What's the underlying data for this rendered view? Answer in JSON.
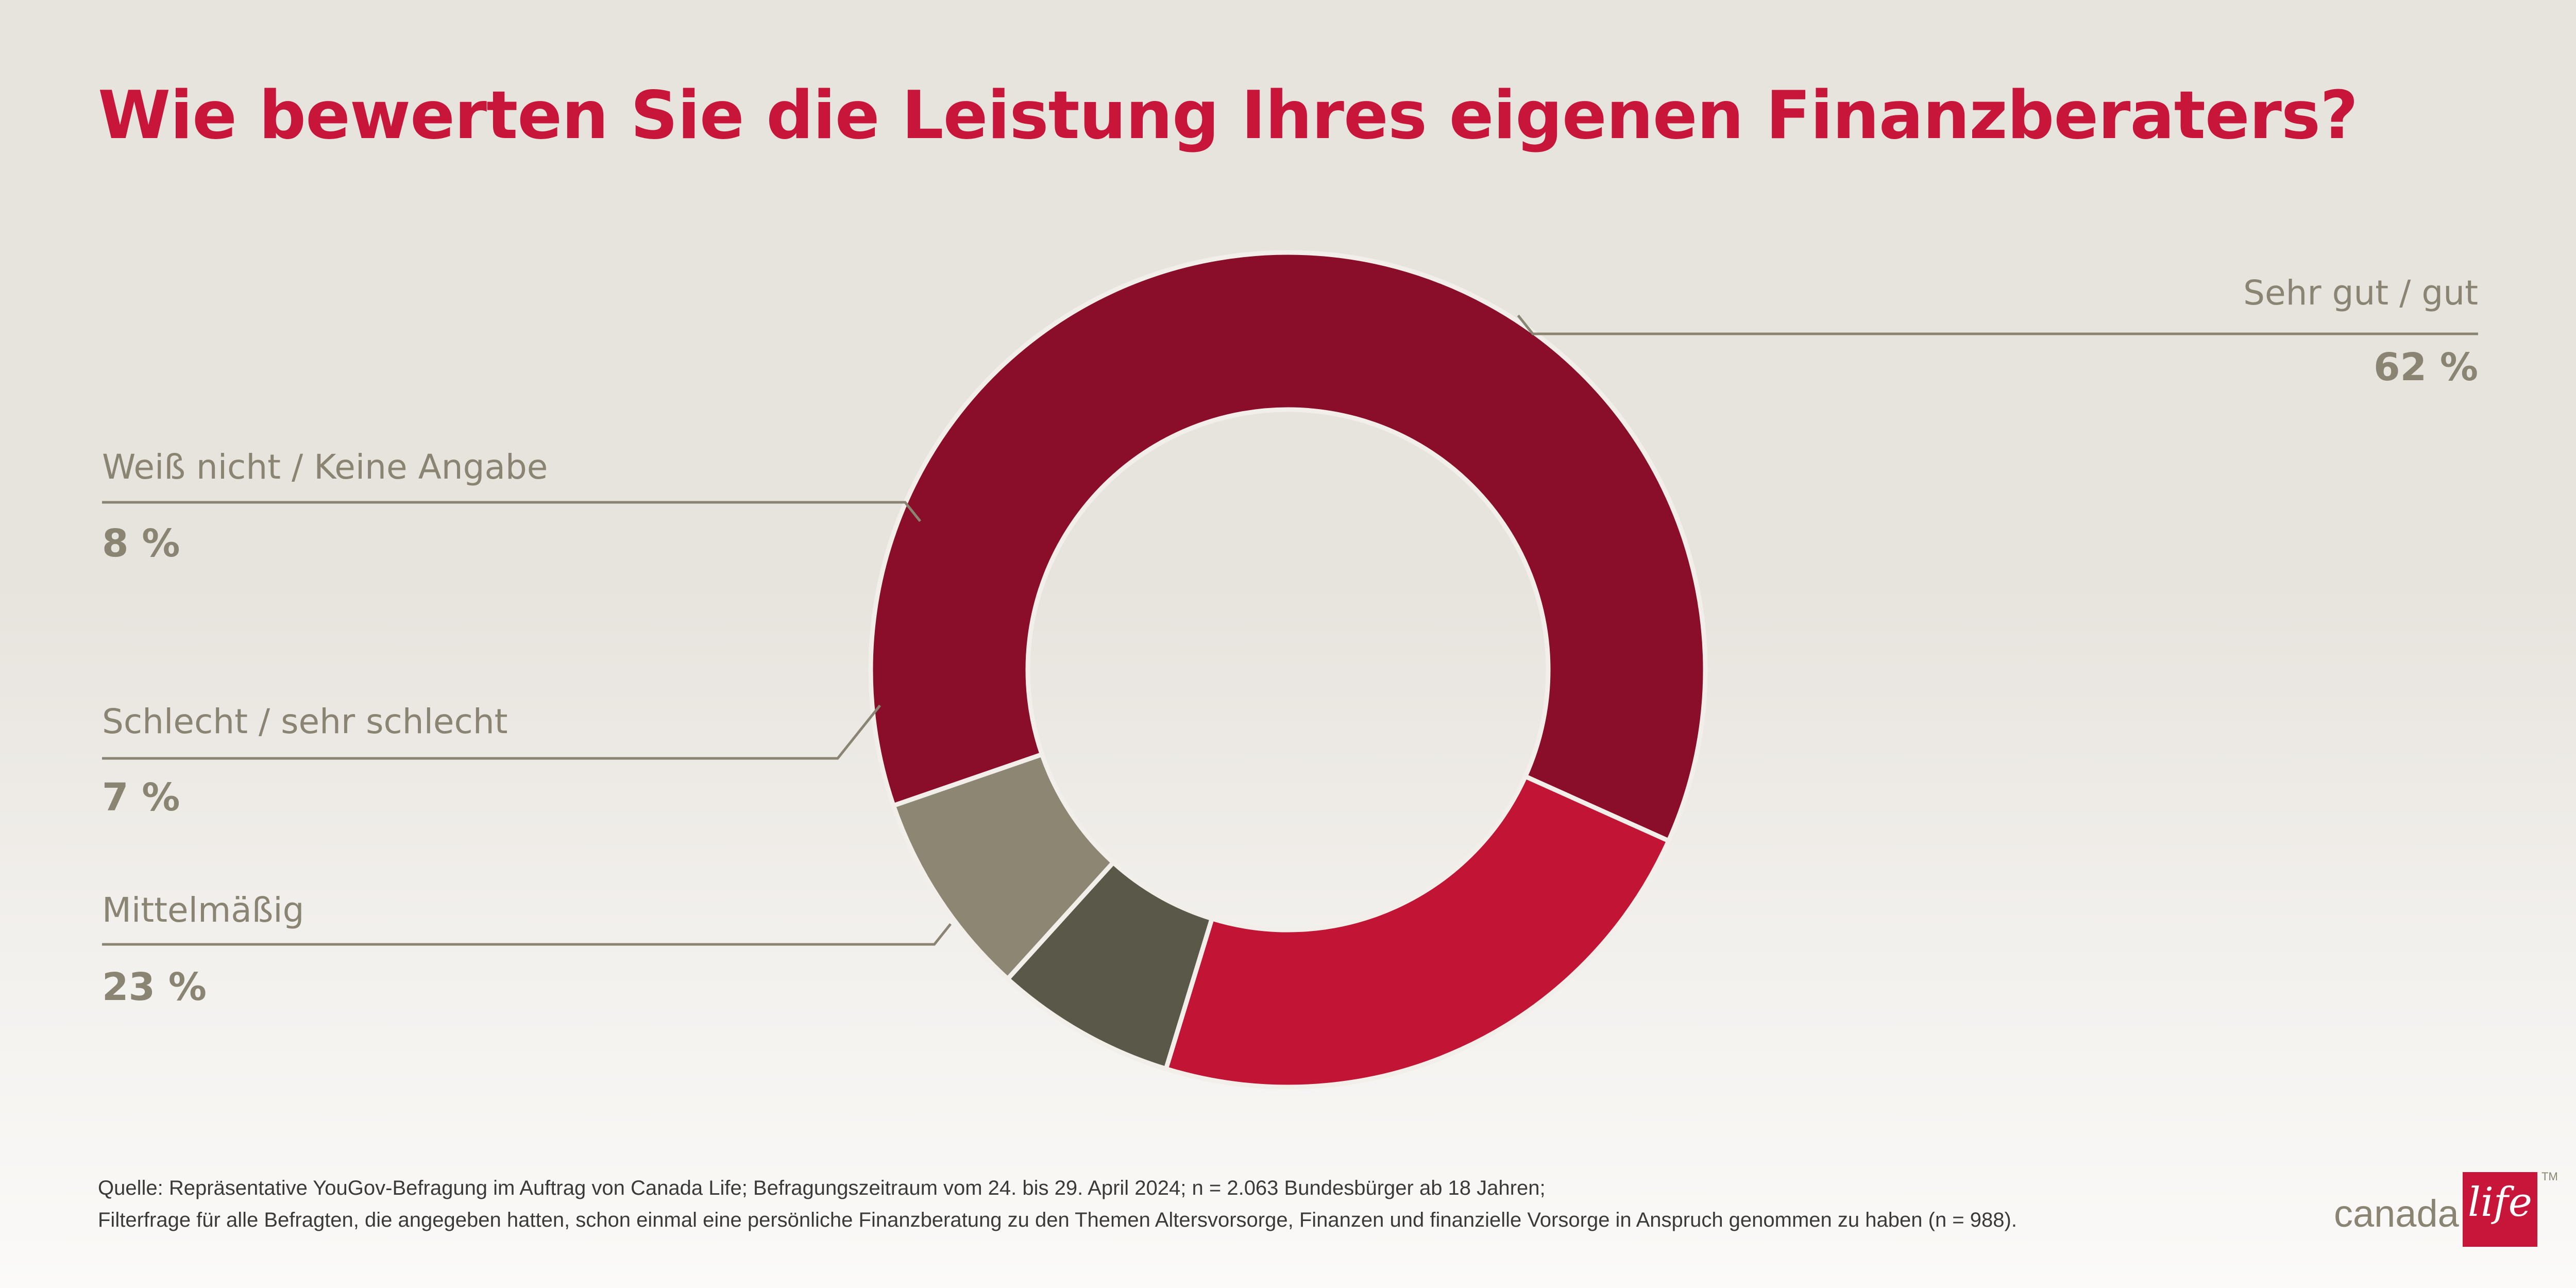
{
  "title": "Wie bewerten Sie die Leistung Ihres eigenen Finanzberaters?",
  "chart_data": {
    "type": "pie",
    "donut": true,
    "title": "Wie bewerten Sie die Leistung Ihres eigenen Finanzberaters?",
    "unit": "%",
    "slices": [
      {
        "label": "Sehr gut / gut",
        "value": 62,
        "display": "62 %",
        "color": "#8a0e2a"
      },
      {
        "label": "Mittelmäßig",
        "value": 23,
        "display": "23 %",
        "color": "#c21536"
      },
      {
        "label": "Schlecht / sehr schlecht",
        "value": 7,
        "display": "7 %",
        "color": "#5a5849"
      },
      {
        "label": "Weiß nicht / Keine Angabe",
        "value": 8,
        "display": "8 %",
        "color": "#8c8672"
      }
    ],
    "legend": "callout labels"
  },
  "footnote": {
    "line1": "Quelle: Repräsentative YouGov-Befragung im Auftrag von Canada Life; Befragungszeitraum vom 24. bis 29. April 2024; n = 2.063 Bundesbürger ab 18 Jahren;",
    "line2": "Filterfrage für alle Befragten, die angegeben hatten, schon einmal eine persönliche Finanzberatung zu den Themen Altersvorsorge, Finanzen und finanzielle Vorsorge in Anspruch genommen zu haben (n = 988)."
  },
  "logo": {
    "word": "canada",
    "script": "life",
    "tm": "TM"
  }
}
